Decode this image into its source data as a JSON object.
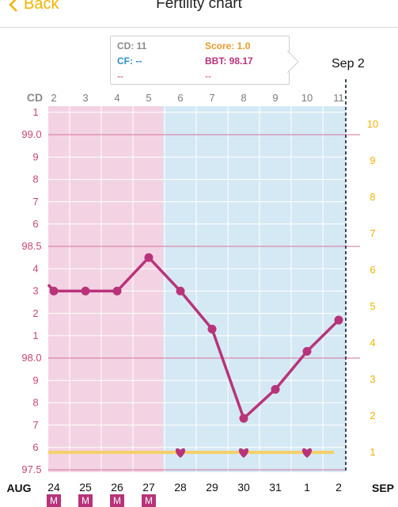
{
  "nav": {
    "back_label": "Back",
    "title": "Fertility chart"
  },
  "tooltip": {
    "cd": "CD: 11",
    "score": "Score: 1.0",
    "cf": "CF: --",
    "bbt": "BBT: 98.17",
    "row3_left": "--",
    "row3_right": "--"
  },
  "marker_label": "Sep 2",
  "axis": {
    "cd_label": "CD",
    "cd_days": [
      "2",
      "3",
      "4",
      "5",
      "6",
      "7",
      "8",
      "9",
      "10",
      "11"
    ],
    "left_labels": [
      "1",
      "99.0",
      "9",
      "8",
      "7",
      "6",
      "98.5",
      "4",
      "3",
      "2",
      "1",
      "98.0",
      "9",
      "8",
      "7",
      "6",
      "97.5"
    ],
    "right_labels": [
      "10",
      "9",
      "8",
      "7",
      "6",
      "5",
      "4",
      "3",
      "2",
      "1"
    ],
    "month_left": "AUG",
    "month_right": "SEP",
    "dates": [
      "24",
      "25",
      "26",
      "27",
      "28",
      "29",
      "30",
      "31",
      "1",
      "2"
    ],
    "m_badge": "M"
  },
  "colors": {
    "accent": "#f0b400",
    "line": "#b8337a",
    "phase1": "#f3d3e3",
    "phase2": "#d5e9f4",
    "score": "#f5d06a"
  },
  "chart_data": {
    "type": "line",
    "x": [
      "24",
      "25",
      "26",
      "27",
      "28",
      "29",
      "30",
      "31",
      "1",
      "2"
    ],
    "series": [
      {
        "values": [
          98.3,
          98.3,
          98.3,
          98.45,
          98.3,
          98.13,
          97.73,
          97.86,
          98.03,
          98.17
        ]
      }
    ],
    "ylim": [
      97.5,
      99.1
    ],
    "intercourse_days": [
      "28",
      "30",
      "1"
    ],
    "period_days": [
      "24",
      "25",
      "26",
      "27"
    ],
    "score_y_range": [
      1,
      10
    ]
  }
}
